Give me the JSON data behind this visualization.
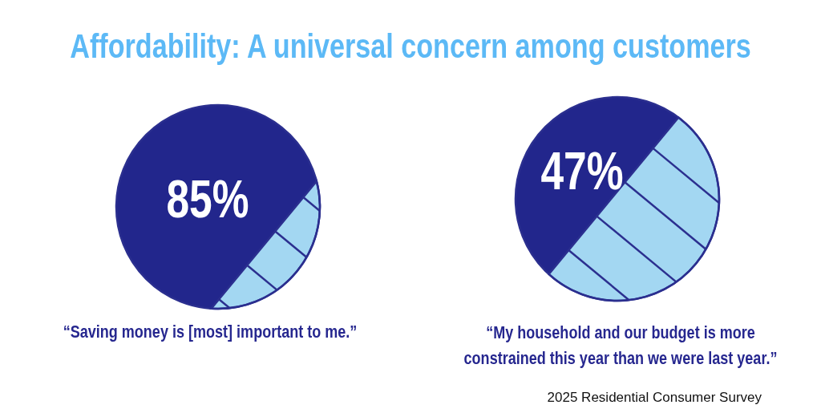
{
  "chart_data": {
    "type": "other",
    "title": "Affordability: A universal concern among customers",
    "categories": [
      "“Saving money is [most] important to me.”",
      "“My household and our budget is more constrained this year than we were last year.”"
    ],
    "values": [
      85,
      47
    ],
    "value_labels": [
      "85%",
      "47%"
    ],
    "colors": [
      "#22268c",
      "#22268c"
    ],
    "annotations": [
      "2025 Residential Consumer Survey"
    ]
  }
}
